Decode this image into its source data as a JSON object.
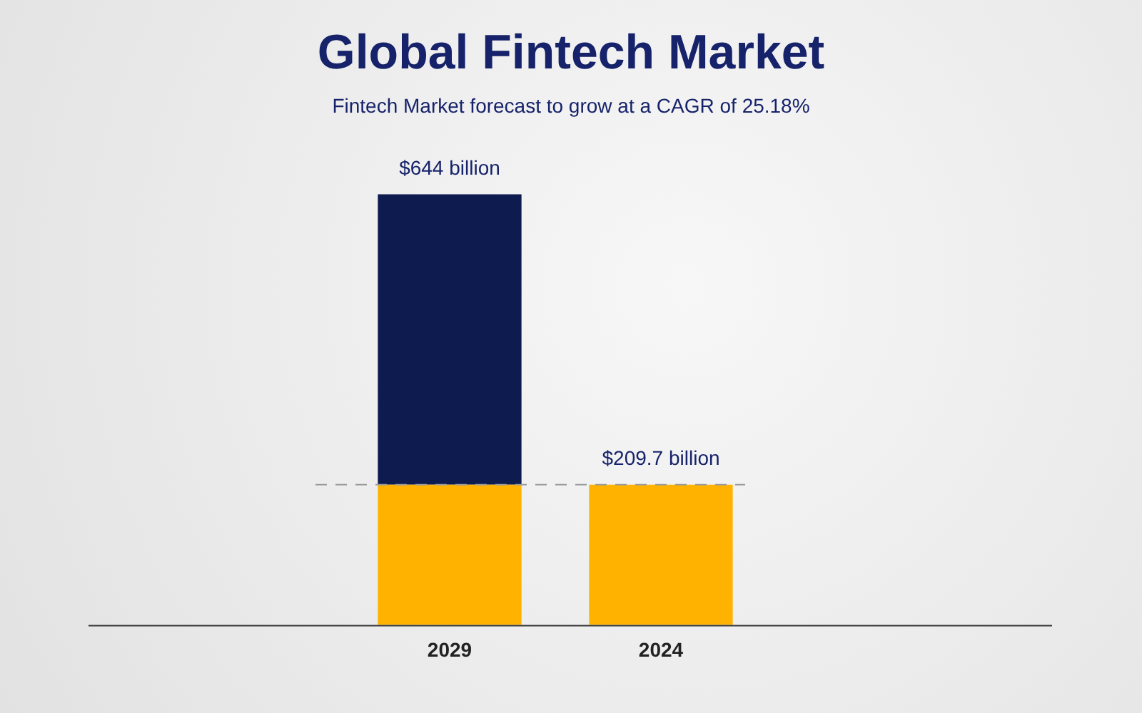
{
  "chart_data": {
    "type": "bar",
    "title": "Global Fintech Market",
    "subtitle": "Fintech Market forecast to grow at a CAGR of 25.18%",
    "categories": [
      "2029",
      "2024"
    ],
    "stacked": true,
    "series": [
      {
        "color": "#ffb300",
        "values": [
          209.7,
          209.7
        ],
        "value_labels": [
          null,
          "$209.7 billion"
        ]
      },
      {
        "color": "#0d1b4f",
        "values": [
          434.3,
          null
        ]
      }
    ],
    "totals": [
      "$644 billion",
      null
    ],
    "ref_lines": [
      {
        "axis": "y",
        "value": 209.7,
        "color": "#9a9a9a",
        "line_style": "dashed"
      }
    ],
    "tick_labels": "x",
    "legend": false,
    "grid": false
  }
}
